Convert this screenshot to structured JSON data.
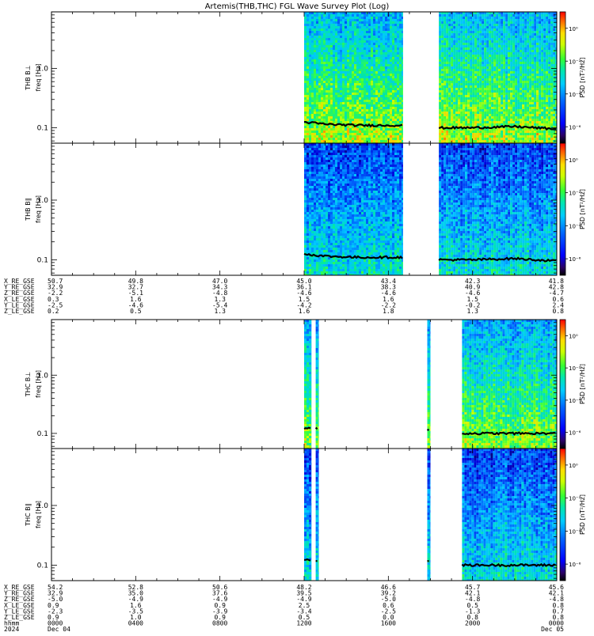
{
  "title": "Artemis(THB,THC) FGL Wave Survey Plot (Log)",
  "colorbar": {
    "label": "PSD [nT²/Hz]",
    "ticks": [
      "10⁰",
      "10⁻²",
      "10⁻⁴",
      "10⁻⁶"
    ],
    "tick_exponents": [
      0,
      -2,
      -4,
      -6
    ],
    "range_exponent": [
      -7,
      1
    ]
  },
  "panels": [
    {
      "probe": "THB",
      "component": "B⊥",
      "ylabel": "THB B⊥",
      "unit_label": "freq [Hz]"
    },
    {
      "probe": "THB",
      "component": "B∥",
      "ylabel": "THB B∥",
      "unit_label": "freq [Hz]"
    },
    {
      "probe": "THC",
      "component": "B⊥",
      "ylabel": "THC B⊥",
      "unit_label": "freq [Hz]"
    },
    {
      "probe": "THC",
      "component": "B∥",
      "ylabel": "THC B∥",
      "unit_label": "freq [Hz]"
    }
  ],
  "ephemeris_thb": {
    "labels": [
      "X_RE_GSE",
      "Y_RE_GSE",
      "Z_RE_GSE",
      "X_LE_GSE",
      "Y_LE_GSE",
      "Z_LE_GSE"
    ],
    "columns": [
      [
        "50.7",
        "32.9",
        "-2.2",
        "0.3",
        "-2.5",
        "0.2"
      ],
      [
        "49.8",
        "32.7",
        "-5.1",
        "1.6",
        "-4.6",
        "0.5"
      ],
      [
        "47.0",
        "34.3",
        "-4.8",
        "1.3",
        "-5.4",
        "1.3"
      ],
      [
        "45.0",
        "36.1",
        "-4.6",
        "1.5",
        "-4.2",
        "1.6"
      ],
      [
        "43.4",
        "38.3",
        "-4.6",
        "1.6",
        "-2.2",
        "1.8"
      ],
      [
        "42.3",
        "40.9",
        "-4.6",
        "1.5",
        "-0.2",
        "1.3"
      ],
      [
        "41.8",
        "42.8",
        "-4.7",
        "0.6",
        "2.4",
        "0.8"
      ]
    ]
  },
  "ephemeris_thc": {
    "labels": [
      "X_RE_GSE",
      "Y_RE_GSE",
      "Z_RE_GSE",
      "X_LE_GSE",
      "Y_LE_GSE",
      "Z_LE_GSE",
      "hhmm",
      "2024"
    ],
    "columns": [
      [
        "54.2",
        "32.9",
        "-5.0",
        "0.9",
        "-2.3",
        "0.9",
        "0000",
        "Dec 04"
      ],
      [
        "52.8",
        "35.0",
        "-4.9",
        "1.6",
        "-3.5",
        "1.0",
        "0400",
        ""
      ],
      [
        "50.6",
        "37.6",
        "-4.9",
        "0.9",
        "-3.9",
        "0.9",
        "0800",
        ""
      ],
      [
        "48.2",
        "39.5",
        "-4.9",
        "2.5",
        "-3.4",
        "0.5",
        "1200",
        ""
      ],
      [
        "46.6",
        "39.2",
        "-5.0",
        "0.6",
        "-2.5",
        "0.0",
        "1600",
        ""
      ],
      [
        "45.7",
        "42.1",
        "-4.8",
        "0.5",
        "-1.3",
        "0.8",
        "2000",
        ""
      ],
      [
        "45.6",
        "42.1",
        "-4.8",
        "0.8",
        "0.7",
        "0.8",
        "0000",
        "Dec 05"
      ]
    ]
  },
  "chart_data": {
    "type": "heatmap",
    "title": "Artemis(THB,THC) FGL Wave Survey Plot (Log)",
    "x_unit": "hours since 2024-12-04 00:00 UT",
    "xlim": [
      0,
      24
    ],
    "y_scale": "log",
    "ylim": [
      0.055,
      9
    ],
    "y_ticks": [
      "0.1",
      "1.0"
    ],
    "z_scale": "log",
    "z_label": "PSD [nT²/Hz]",
    "z_range_exponent": [
      -7,
      1
    ],
    "series": [
      {
        "panel": "THB B⊥",
        "coverage_hours": [
          [
            12.0,
            16.7
          ],
          [
            18.4,
            24.0
          ]
        ],
        "data_freq_range_hz": [
          0.055,
          9
        ],
        "black_line_hz": [
          [
            12.0,
            0.125
          ],
          [
            13.0,
            0.115
          ],
          [
            14.5,
            0.11
          ],
          [
            16.5,
            0.11
          ],
          [
            18.5,
            0.1
          ],
          [
            20.0,
            0.1
          ],
          [
            22.0,
            0.105
          ],
          [
            24.0,
            0.095
          ]
        ]
      },
      {
        "panel": "THB B∥",
        "coverage_hours": [
          [
            12.0,
            16.7
          ],
          [
            18.4,
            24.0
          ]
        ],
        "data_freq_range_hz": [
          0.055,
          9
        ],
        "black_line_hz": [
          [
            12.0,
            0.125
          ],
          [
            13.0,
            0.115
          ],
          [
            14.5,
            0.11
          ],
          [
            16.5,
            0.11
          ],
          [
            18.5,
            0.1
          ],
          [
            20.0,
            0.1
          ],
          [
            22.0,
            0.105
          ],
          [
            24.0,
            0.095
          ]
        ]
      },
      {
        "panel": "THC B⊥",
        "coverage_hours": [
          [
            12.0,
            12.35
          ],
          [
            12.55,
            12.7
          ],
          [
            17.85,
            18.0
          ],
          [
            19.5,
            24.0
          ]
        ],
        "data_freq_range_hz": [
          0.055,
          9
        ],
        "black_line_hz": [
          [
            12.0,
            0.125
          ],
          [
            12.7,
            0.12
          ],
          [
            17.9,
            0.115
          ],
          [
            19.5,
            0.1
          ],
          [
            21.0,
            0.1
          ],
          [
            24.0,
            0.1
          ]
        ]
      },
      {
        "panel": "THC B∥",
        "coverage_hours": [
          [
            12.0,
            12.35
          ],
          [
            12.55,
            12.7
          ],
          [
            17.85,
            18.0
          ],
          [
            19.5,
            24.0
          ]
        ],
        "data_freq_range_hz": [
          0.055,
          9
        ],
        "black_line_hz": [
          [
            12.0,
            0.125
          ],
          [
            12.7,
            0.12
          ],
          [
            17.9,
            0.115
          ],
          [
            19.5,
            0.1
          ],
          [
            21.0,
            0.1
          ],
          [
            24.0,
            0.1
          ]
        ]
      }
    ],
    "x_ticks": [
      "0000",
      "0400",
      "0800",
      "1200",
      "1600",
      "2000",
      "0000"
    ]
  }
}
